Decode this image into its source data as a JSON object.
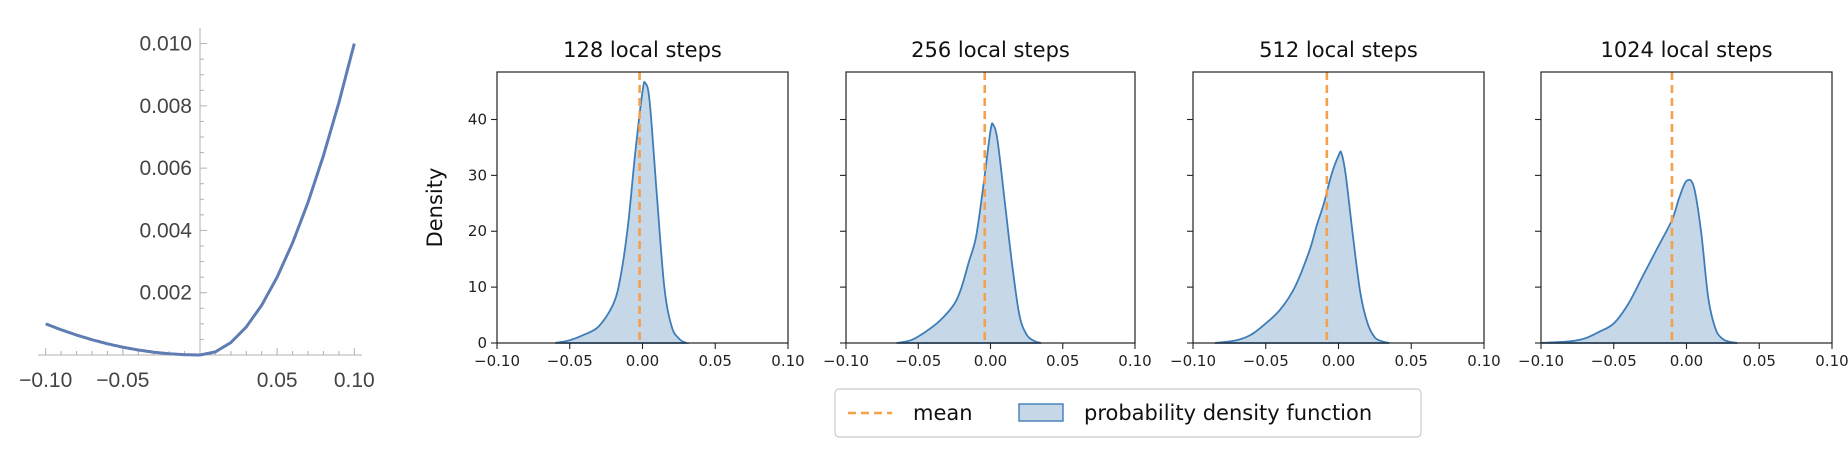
{
  "chart_data": [
    {
      "type": "line",
      "title": "",
      "xlabel": "",
      "ylabel": "",
      "xlim": [
        -0.105,
        0.105
      ],
      "ylim": [
        0,
        0.0105
      ],
      "x_ticks": [
        -0.1,
        -0.05,
        0.05,
        0.1
      ],
      "x_tick_labels": [
        "−0.10",
        "−0.05",
        "0.05",
        "0.10"
      ],
      "y_ticks": [
        0.002,
        0.004,
        0.006,
        0.008,
        0.01
      ],
      "y_tick_labels": [
        "0.002",
        "0.004",
        "0.006",
        "0.008",
        "0.010"
      ],
      "grid": false,
      "line_color": "#5f7db3",
      "x": [
        -0.1,
        -0.09,
        -0.08,
        -0.07,
        -0.06,
        -0.05,
        -0.04,
        -0.03,
        -0.02,
        -0.01,
        0,
        0.01,
        0.02,
        0.03,
        0.04,
        0.05,
        0.06,
        0.07,
        0.08,
        0.09,
        0.1
      ],
      "y": [
        0.001,
        0.00081,
        0.00064,
        0.00049,
        0.00036,
        0.00025,
        0.00016,
        9e-05,
        4e-05,
        1e-05,
        0,
        0.0001,
        0.0004,
        0.0009,
        0.0016,
        0.0025,
        0.0036,
        0.0049,
        0.0064,
        0.0081,
        0.01
      ]
    },
    {
      "type": "area",
      "title": "128 local steps",
      "xlabel": "",
      "ylabel": "Density",
      "xlim": [
        -0.1,
        0.1
      ],
      "ylim": [
        0,
        48.5
      ],
      "mean": -0.002,
      "x": [
        -0.06,
        -0.05,
        -0.04,
        -0.03,
        -0.02,
        -0.015,
        -0.01,
        -0.005,
        0,
        0.002,
        0.005,
        0.01,
        0.015,
        0.02,
        0.025,
        0.03
      ],
      "y": [
        0,
        0.5,
        1.5,
        3,
        7,
        12,
        21,
        34,
        45,
        46.5,
        43,
        26,
        10,
        3,
        0.8,
        0
      ]
    },
    {
      "type": "area",
      "title": "256 local steps",
      "xlabel": "",
      "ylabel": "",
      "xlim": [
        -0.1,
        0.1
      ],
      "ylim": [
        0,
        48.5
      ],
      "mean": -0.004,
      "x": [
        -0.065,
        -0.055,
        -0.045,
        -0.035,
        -0.025,
        -0.02,
        -0.015,
        -0.01,
        -0.005,
        0,
        0.002,
        0.005,
        0.01,
        0.015,
        0.02,
        0.025,
        0.03,
        0.035
      ],
      "y": [
        0,
        0.5,
        2,
        4,
        7,
        10,
        14.5,
        19,
        28,
        38,
        39,
        36,
        25,
        14,
        5,
        1.5,
        0.4,
        0
      ]
    },
    {
      "type": "area",
      "title": "512 local steps",
      "xlabel": "",
      "ylabel": "",
      "xlim": [
        -0.1,
        0.1
      ],
      "ylim": [
        0,
        48.5
      ],
      "mean": -0.008,
      "x": [
        -0.085,
        -0.07,
        -0.06,
        -0.05,
        -0.04,
        -0.03,
        -0.02,
        -0.015,
        -0.01,
        -0.005,
        0,
        0.002,
        0.005,
        0.01,
        0.015,
        0.02,
        0.025,
        0.03,
        0.035
      ],
      "y": [
        0,
        0.5,
        1.5,
        3.5,
        6,
        10,
        16.5,
        21,
        25,
        30,
        33.5,
        34,
        30,
        19,
        9,
        3.5,
        1,
        0.3,
        0
      ]
    },
    {
      "type": "area",
      "title": "1024 local steps",
      "xlabel": "",
      "ylabel": "",
      "xlim": [
        -0.1,
        0.1
      ],
      "ylim": [
        0,
        48.5
      ],
      "mean": -0.01,
      "x": [
        -0.1,
        -0.08,
        -0.07,
        -0.06,
        -0.05,
        -0.04,
        -0.03,
        -0.02,
        -0.01,
        -0.005,
        0,
        0.005,
        0.01,
        0.015,
        0.02,
        0.025,
        0.03,
        0.035
      ],
      "y": [
        0,
        0.3,
        0.8,
        2,
        3.5,
        7,
        12,
        17,
        22,
        26,
        29,
        28,
        20,
        8,
        2.5,
        0.7,
        0.2,
        0
      ]
    }
  ],
  "panel_x_ticks": [
    -0.1,
    -0.05,
    0,
    0.05,
    0.1
  ],
  "panel_x_tick_labels": [
    "−0.10",
    "−0.05",
    "0.00",
    "0.05",
    "0.10"
  ],
  "panel_y_ticks": [
    0,
    10,
    20,
    30,
    40
  ],
  "panel_y_tick_labels": [
    "0",
    "10",
    "20",
    "30",
    "40"
  ],
  "legend": {
    "placement": "bottom-center",
    "mean_label": "mean",
    "pdf_label": "probability density function"
  },
  "colors": {
    "mean_line": "#f5a04c",
    "pdf_fill": "#c6d8e8",
    "pdf_edge": "#3f7db8",
    "axis": "#222222",
    "curve": "#5f7db3",
    "math_axis": "#b0b0b0"
  }
}
